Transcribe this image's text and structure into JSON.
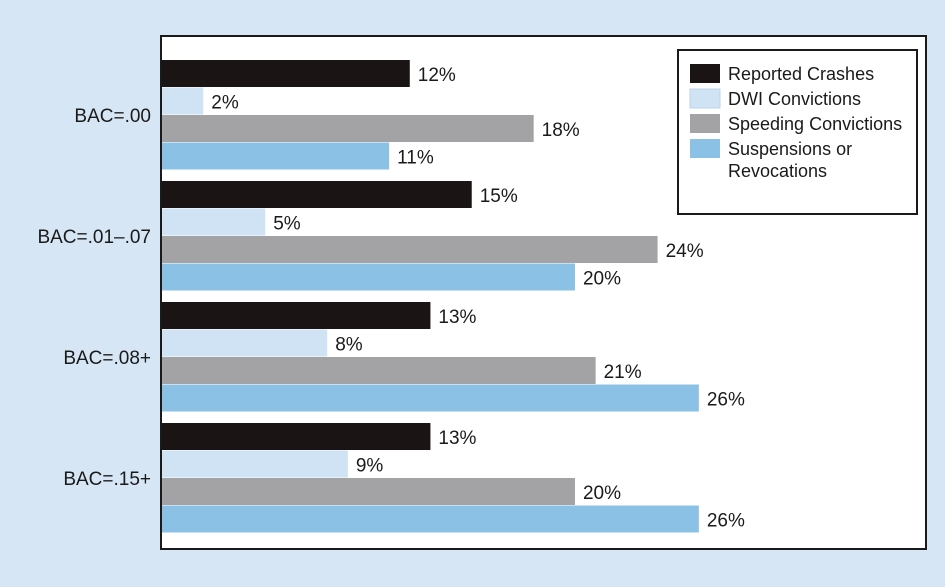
{
  "chart_data": {
    "type": "bar",
    "orientation": "horizontal",
    "categories": [
      "BAC=.00",
      "BAC=.01–.07",
      "BAC=.08+",
      "BAC=.15+"
    ],
    "series": [
      {
        "name": "Reported Crashes",
        "color": "#1a1414",
        "values": [
          12,
          15,
          13,
          13
        ]
      },
      {
        "name": "DWI Convictions",
        "color": "#cfe3f4",
        "values": [
          2,
          5,
          8,
          9
        ]
      },
      {
        "name": "Speeding Convictions",
        "color": "#a3a3a5",
        "values": [
          18,
          24,
          21,
          20
        ]
      },
      {
        "name": "Suspensions or Revocations",
        "color": "#8cc1e6",
        "values": [
          11,
          20,
          26,
          26
        ]
      }
    ],
    "value_suffix": "%",
    "xlim": [
      0,
      37
    ],
    "grid": false,
    "legend_position": "top-right",
    "title": "",
    "xlabel": "",
    "ylabel": ""
  },
  "colors": {
    "background": "#d6e6f5",
    "plot_background": "#ffffff",
    "axis": "#1a1a1a"
  }
}
